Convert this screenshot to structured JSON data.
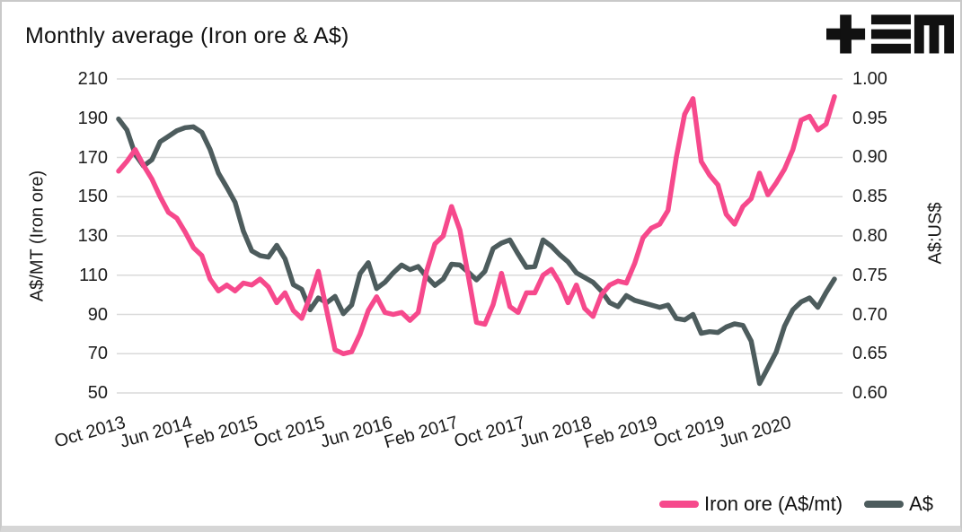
{
  "title": "Monthly average (Iron ore & A$)",
  "logo": {
    "name": "tem-logo",
    "color": "#111111"
  },
  "colors": {
    "background": "#ffffff",
    "grid": "#dadada",
    "text": "#1a1a1a",
    "iron_ore_line": "#f6498c",
    "aud_line": "#4d5c5d",
    "frame_border": "#c9c9c9"
  },
  "legend": {
    "position": "bottom-right"
  },
  "chart_data": {
    "type": "line",
    "title": "Monthly average (Iron ore & A$)",
    "x_mode": "monthly",
    "start_month": "Oct 2013",
    "end_month": "Dec 2020",
    "grid": "horizontal-only",
    "legend_position": "bottom-right",
    "x_ticks": [
      "Oct 2013",
      "Jun 2014",
      "Feb 2015",
      "Oct 2015",
      "Jun 2016",
      "Feb 2017",
      "Oct 2017",
      "Jun 2018",
      "Feb 2019",
      "Oct 2019",
      "Jun 2020"
    ],
    "left_axis": {
      "label": "A$/MT (Iron ore)",
      "min": 50,
      "max": 210,
      "ticks": [
        210,
        190,
        170,
        150,
        130,
        110,
        90,
        70,
        50
      ]
    },
    "right_axis": {
      "label": "A$:US$",
      "min": 0.6,
      "max": 1.0,
      "ticks": [
        "1.00",
        "0.95",
        "0.90",
        "0.85",
        "0.80",
        "0.75",
        "0.70",
        "0.65",
        "0.60"
      ]
    },
    "months": [
      "Oct 2013",
      "Nov 2013",
      "Dec 2013",
      "Jan 2014",
      "Feb 2014",
      "Mar 2014",
      "Apr 2014",
      "May 2014",
      "Jun 2014",
      "Jul 2014",
      "Aug 2014",
      "Sep 2014",
      "Oct 2014",
      "Nov 2014",
      "Dec 2014",
      "Jan 2015",
      "Feb 2015",
      "Mar 2015",
      "Apr 2015",
      "May 2015",
      "Jun 2015",
      "Jul 2015",
      "Aug 2015",
      "Sep 2015",
      "Oct 2015",
      "Nov 2015",
      "Dec 2015",
      "Jan 2016",
      "Feb 2016",
      "Mar 2016",
      "Apr 2016",
      "May 2016",
      "Jun 2016",
      "Jul 2016",
      "Aug 2016",
      "Sep 2016",
      "Oct 2016",
      "Nov 2016",
      "Dec 2016",
      "Jan 2017",
      "Feb 2017",
      "Mar 2017",
      "Apr 2017",
      "May 2017",
      "Jun 2017",
      "Jul 2017",
      "Aug 2017",
      "Sep 2017",
      "Oct 2017",
      "Nov 2017",
      "Dec 2017",
      "Jan 2018",
      "Feb 2018",
      "Mar 2018",
      "Apr 2018",
      "May 2018",
      "Jun 2018",
      "Jul 2018",
      "Aug 2018",
      "Sep 2018",
      "Oct 2018",
      "Nov 2018",
      "Dec 2018",
      "Jan 2019",
      "Feb 2019",
      "Mar 2019",
      "Apr 2019",
      "May 2019",
      "Jun 2019",
      "Jul 2019",
      "Aug 2019",
      "Sep 2019",
      "Oct 2019",
      "Nov 2019",
      "Dec 2019",
      "Jan 2020",
      "Feb 2020",
      "Mar 2020",
      "Apr 2020",
      "May 2020",
      "Jun 2020",
      "Jul 2020",
      "Aug 2020",
      "Sep 2020",
      "Oct 2020",
      "Nov 2020",
      "Dec 2020"
    ],
    "series": [
      {
        "key": "iron-ore",
        "name": "Iron ore (A$/mt)",
        "axis": "left",
        "color": "#f6498c",
        "values": [
          163,
          168,
          174,
          166,
          159,
          150,
          142,
          139,
          132,
          124,
          120,
          108,
          102,
          105,
          102,
          106,
          105,
          108,
          104,
          96,
          101,
          92,
          88,
          99,
          112,
          92,
          72,
          70,
          71,
          80,
          92,
          99,
          91,
          90,
          91,
          87,
          91,
          112,
          126,
          130,
          145,
          133,
          110,
          86,
          85,
          95,
          111,
          94,
          91,
          101,
          101,
          110,
          113,
          106,
          96,
          105,
          93,
          89,
          100,
          105,
          107,
          106,
          116,
          129,
          134,
          136,
          143,
          170,
          192,
          200,
          168,
          161,
          156,
          141,
          136,
          145,
          149,
          162,
          151,
          157,
          164,
          174,
          189,
          191,
          184,
          187,
          201
        ]
      },
      {
        "key": "aud",
        "name": "A$",
        "axis": "right",
        "color": "#4d5c5d",
        "values": [
          0.949,
          0.935,
          0.904,
          0.889,
          0.897,
          0.92,
          0.927,
          0.934,
          0.938,
          0.939,
          0.932,
          0.91,
          0.88,
          0.862,
          0.843,
          0.806,
          0.781,
          0.775,
          0.773,
          0.788,
          0.771,
          0.738,
          0.732,
          0.706,
          0.721,
          0.715,
          0.723,
          0.701,
          0.712,
          0.752,
          0.766,
          0.733,
          0.741,
          0.753,
          0.763,
          0.757,
          0.761,
          0.748,
          0.737,
          0.745,
          0.764,
          0.763,
          0.754,
          0.744,
          0.755,
          0.784,
          0.791,
          0.795,
          0.777,
          0.76,
          0.761,
          0.795,
          0.787,
          0.776,
          0.767,
          0.753,
          0.747,
          0.741,
          0.73,
          0.715,
          0.71,
          0.724,
          0.718,
          0.715,
          0.712,
          0.709,
          0.712,
          0.695,
          0.693,
          0.7,
          0.676,
          0.678,
          0.677,
          0.684,
          0.688,
          0.686,
          0.666,
          0.612,
          0.632,
          0.652,
          0.685,
          0.706,
          0.716,
          0.721,
          0.709,
          0.728,
          0.745
        ]
      }
    ]
  }
}
